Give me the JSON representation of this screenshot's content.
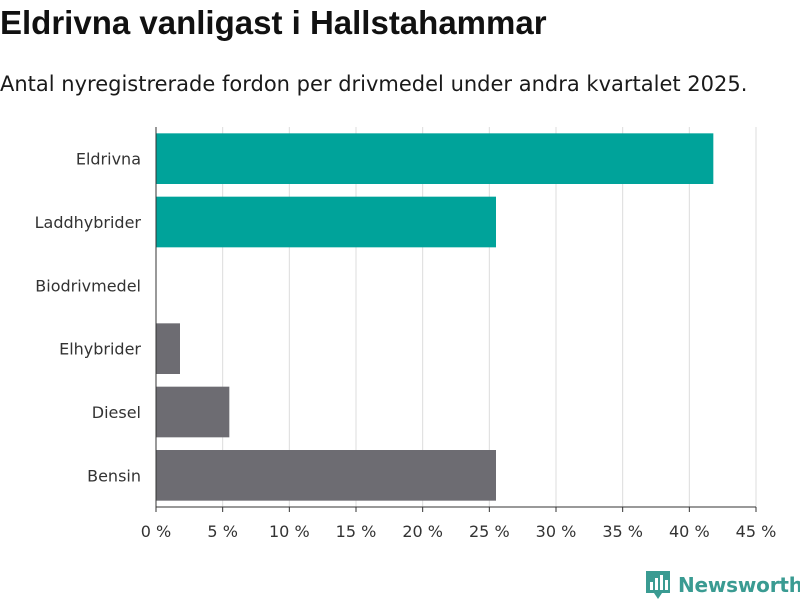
{
  "title": "Eldrivna vanligast i Hallstahammar",
  "subtitle": "Antal nyregistrerade fordon per drivmedel under andra kvartalet 2025.",
  "brand": {
    "name": "Newsworthy",
    "logo_icon": "bar-chart-logo-icon",
    "color": "#3a9b92"
  },
  "chart_data": {
    "type": "bar",
    "orientation": "horizontal",
    "categories": [
      "Eldrivna",
      "Laddhybrider",
      "Biodrivmedel",
      "Elhybrider",
      "Diesel",
      "Bensin"
    ],
    "values": [
      41.8,
      25.5,
      0,
      1.8,
      5.5,
      25.5
    ],
    "colors": [
      "#00a39a",
      "#00a39a",
      "#00a39a",
      "#6d6c72",
      "#6d6c72",
      "#6d6c72"
    ],
    "xlim": [
      0,
      45
    ],
    "xticks": [
      0,
      5,
      10,
      15,
      20,
      25,
      30,
      35,
      40,
      45
    ],
    "tick_labels": [
      "0 %",
      "5 %",
      "10 %",
      "15 %",
      "20 %",
      "25 %",
      "30 %",
      "35 %",
      "40 %",
      "45 %"
    ],
    "xlabel": "",
    "ylabel": "",
    "grid": true,
    "legend": "none"
  }
}
